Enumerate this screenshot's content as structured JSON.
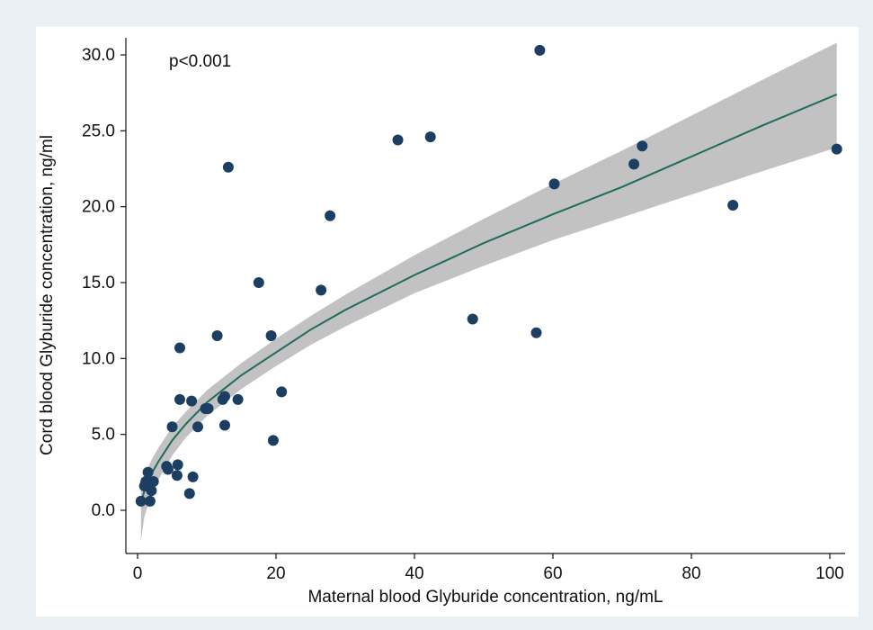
{
  "chart_data": {
    "type": "scatter",
    "xlabel": "Maternal blood Glyburide concentration, ng/mL",
    "ylabel": "Cord blood Glyburide concentration, ng/ml",
    "xlim": [
      0,
      101
    ],
    "ylim": [
      -2.5,
      31
    ],
    "xticks": [
      0,
      20,
      40,
      60,
      80,
      100
    ],
    "yticks": [
      0.0,
      5.0,
      10.0,
      15.0,
      20.0,
      25.0,
      30.0
    ],
    "annotation": "p<0.001",
    "grid": false,
    "points": [
      {
        "x": 0.5,
        "y": 0.6
      },
      {
        "x": 1.0,
        "y": 1.6
      },
      {
        "x": 1.2,
        "y": 1.9
      },
      {
        "x": 1.5,
        "y": 2.5
      },
      {
        "x": 1.8,
        "y": 0.6
      },
      {
        "x": 2.0,
        "y": 1.3
      },
      {
        "x": 2.3,
        "y": 1.9
      },
      {
        "x": 4.2,
        "y": 2.9
      },
      {
        "x": 4.4,
        "y": 2.7
      },
      {
        "x": 5.0,
        "y": 5.5
      },
      {
        "x": 5.8,
        "y": 3.0
      },
      {
        "x": 5.7,
        "y": 2.3
      },
      {
        "x": 6.1,
        "y": 7.3
      },
      {
        "x": 6.1,
        "y": 10.7
      },
      {
        "x": 7.5,
        "y": 1.1
      },
      {
        "x": 7.8,
        "y": 7.2
      },
      {
        "x": 8.0,
        "y": 2.2
      },
      {
        "x": 8.7,
        "y": 5.5
      },
      {
        "x": 9.8,
        "y": 6.7
      },
      {
        "x": 10.2,
        "y": 6.7
      },
      {
        "x": 11.5,
        "y": 11.5
      },
      {
        "x": 12.3,
        "y": 7.3
      },
      {
        "x": 12.6,
        "y": 5.6
      },
      {
        "x": 12.6,
        "y": 7.5
      },
      {
        "x": 13.1,
        "y": 22.6
      },
      {
        "x": 14.5,
        "y": 7.3
      },
      {
        "x": 17.5,
        "y": 15.0
      },
      {
        "x": 19.3,
        "y": 11.5
      },
      {
        "x": 19.6,
        "y": 4.6
      },
      {
        "x": 20.8,
        "y": 7.8
      },
      {
        "x": 26.5,
        "y": 14.5
      },
      {
        "x": 27.8,
        "y": 19.4
      },
      {
        "x": 37.6,
        "y": 24.4
      },
      {
        "x": 42.3,
        "y": 24.6
      },
      {
        "x": 48.4,
        "y": 12.6
      },
      {
        "x": 57.6,
        "y": 11.7
      },
      {
        "x": 58.1,
        "y": 30.3
      },
      {
        "x": 60.2,
        "y": 21.5
      },
      {
        "x": 71.7,
        "y": 22.8
      },
      {
        "x": 72.9,
        "y": 24.0
      },
      {
        "x": 86.0,
        "y": 20.1
      },
      {
        "x": 101.0,
        "y": 23.8
      }
    ],
    "fit_line": {
      "color": "#1f6b5e",
      "points": [
        {
          "x": 0.5,
          "y": 0.5
        },
        {
          "x": 1,
          "y": 1.3
        },
        {
          "x": 2,
          "y": 2.4
        },
        {
          "x": 3,
          "y": 3.2
        },
        {
          "x": 5,
          "y": 4.6
        },
        {
          "x": 7,
          "y": 5.7
        },
        {
          "x": 10,
          "y": 7.1
        },
        {
          "x": 15,
          "y": 8.9
        },
        {
          "x": 20,
          "y": 10.4
        },
        {
          "x": 25,
          "y": 11.9
        },
        {
          "x": 30,
          "y": 13.2
        },
        {
          "x": 40,
          "y": 15.5
        },
        {
          "x": 50,
          "y": 17.6
        },
        {
          "x": 60,
          "y": 19.5
        },
        {
          "x": 70,
          "y": 21.3
        },
        {
          "x": 80,
          "y": 23.3
        },
        {
          "x": 90,
          "y": 25.3
        },
        {
          "x": 101,
          "y": 27.4
        }
      ]
    },
    "ci_band": {
      "color": "#c2c2c2",
      "upper": [
        {
          "x": 0.5,
          "y": 1.6
        },
        {
          "x": 1,
          "y": 2.3
        },
        {
          "x": 2,
          "y": 3.3
        },
        {
          "x": 3,
          "y": 4.1
        },
        {
          "x": 5,
          "y": 5.5
        },
        {
          "x": 7,
          "y": 6.5
        },
        {
          "x": 10,
          "y": 7.9
        },
        {
          "x": 15,
          "y": 9.7
        },
        {
          "x": 20,
          "y": 11.3
        },
        {
          "x": 25,
          "y": 12.8
        },
        {
          "x": 30,
          "y": 14.2
        },
        {
          "x": 40,
          "y": 16.8
        },
        {
          "x": 50,
          "y": 19.2
        },
        {
          "x": 60,
          "y": 21.5
        },
        {
          "x": 70,
          "y": 23.7
        },
        {
          "x": 80,
          "y": 26.0
        },
        {
          "x": 90,
          "y": 28.3
        },
        {
          "x": 101,
          "y": 30.8
        }
      ],
      "lower": [
        {
          "x": 0.5,
          "y": -2.0
        },
        {
          "x": 1,
          "y": -0.4
        },
        {
          "x": 2,
          "y": 1.0
        },
        {
          "x": 3,
          "y": 2.0
        },
        {
          "x": 5,
          "y": 3.6
        },
        {
          "x": 7,
          "y": 4.8
        },
        {
          "x": 10,
          "y": 6.2
        },
        {
          "x": 15,
          "y": 8.0
        },
        {
          "x": 20,
          "y": 9.5
        },
        {
          "x": 25,
          "y": 10.9
        },
        {
          "x": 30,
          "y": 12.1
        },
        {
          "x": 40,
          "y": 14.3
        },
        {
          "x": 50,
          "y": 16.1
        },
        {
          "x": 60,
          "y": 17.8
        },
        {
          "x": 70,
          "y": 19.3
        },
        {
          "x": 80,
          "y": 20.8
        },
        {
          "x": 90,
          "y": 22.3
        },
        {
          "x": 101,
          "y": 23.9
        }
      ]
    },
    "point_color": "#1c3e63",
    "plot_bg": "#ffffff"
  }
}
